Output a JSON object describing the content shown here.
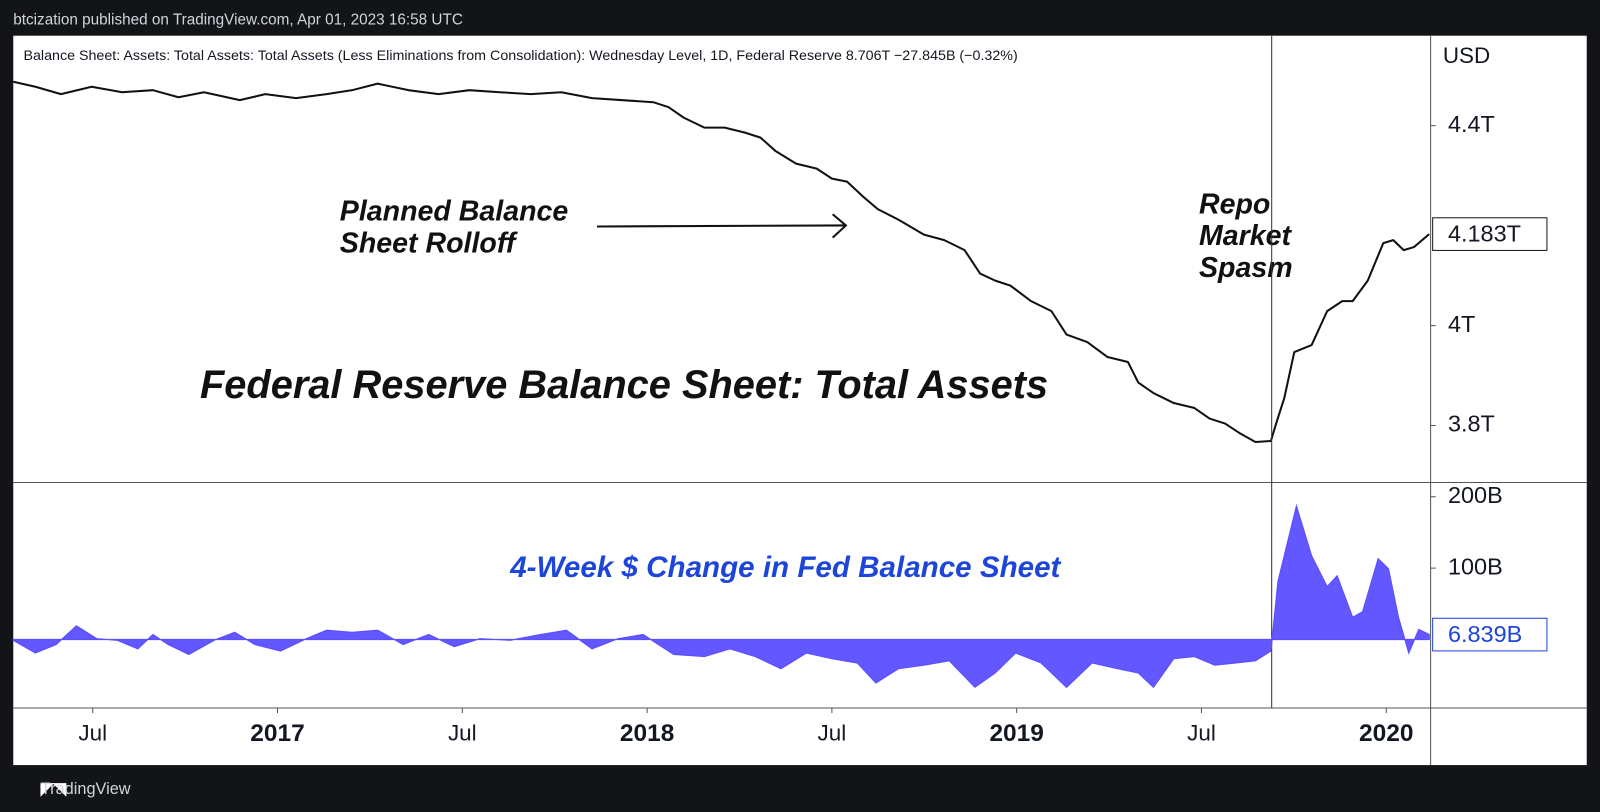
{
  "header": {
    "byline": "btcization published on TradingView.com, Apr 01, 2023 16:58 UTC"
  },
  "footer": {
    "brand": "TradingView"
  },
  "chart_data": [
    {
      "type": "line",
      "legend_text": "Balance Sheet: Assets: Total Assets: Total Assets (Less Eliminations from Consolidation): Wednesday Level, 1D, Federal Reserve  8.706T  −27.845B (−0.32%)",
      "title": "Federal Reserve Balance Sheet: Total Assets",
      "axis_unit": "USD",
      "annotations": [
        {
          "lines": [
            "Planned Balance",
            "Sheet Rolloff"
          ]
        },
        {
          "lines": [
            "Repo",
            "Market",
            "Spasm"
          ]
        }
      ],
      "color": "#111111",
      "event_x": 2019.69,
      "xlim": [
        2016.285,
        2020.12
      ],
      "ylim": [
        3.686,
        4.58
      ],
      "yticks": [
        {
          "value": 4.4,
          "label": "4.4T"
        },
        {
          "value": 4,
          "label": "4T"
        },
        {
          "value": 3.8,
          "label": "3.8T"
        }
      ],
      "last_value": {
        "value": 4.183,
        "label": "4.183T"
      },
      "x": [
        2016.285,
        2016.345,
        2016.414,
        2016.497,
        2016.58,
        2016.663,
        2016.732,
        2016.801,
        2016.898,
        2016.967,
        2017.05,
        2017.133,
        2017.202,
        2017.271,
        2017.354,
        2017.436,
        2017.519,
        2017.602,
        2017.685,
        2017.768,
        2017.851,
        2017.934,
        2018.017,
        2018.058,
        2018.099,
        2018.155,
        2018.21,
        2018.265,
        2018.307,
        2018.348,
        2018.403,
        2018.459,
        2018.5,
        2018.541,
        2018.583,
        2018.624,
        2018.68,
        2018.749,
        2018.804,
        2018.859,
        2018.901,
        2018.942,
        2018.983,
        2019.039,
        2019.094,
        2019.135,
        2019.191,
        2019.246,
        2019.301,
        2019.329,
        2019.37,
        2019.425,
        2019.481,
        2019.522,
        2019.564,
        2019.605,
        2019.646,
        2019.688,
        2019.702,
        2019.724,
        2019.751,
        2019.798,
        2019.84,
        2019.881,
        2019.909,
        2019.95,
        2019.992,
        2020.019,
        2020.047,
        2020.075,
        2020.116
      ],
      "values": [
        4.488,
        4.478,
        4.463,
        4.478,
        4.467,
        4.471,
        4.457,
        4.467,
        4.451,
        4.463,
        4.455,
        4.463,
        4.471,
        4.484,
        4.471,
        4.463,
        4.471,
        4.467,
        4.463,
        4.467,
        4.455,
        4.451,
        4.447,
        4.437,
        4.416,
        4.396,
        4.396,
        4.386,
        4.376,
        4.349,
        4.324,
        4.314,
        4.294,
        4.288,
        4.259,
        4.233,
        4.212,
        4.182,
        4.171,
        4.151,
        4.104,
        4.09,
        4.08,
        4.049,
        4.029,
        3.982,
        3.967,
        3.937,
        3.927,
        3.886,
        3.865,
        3.845,
        3.835,
        3.814,
        3.804,
        3.784,
        3.767,
        3.769,
        3.804,
        3.855,
        3.947,
        3.961,
        4.029,
        4.049,
        4.049,
        4.09,
        4.165,
        4.171,
        4.151,
        4.157,
        4.183
      ]
    },
    {
      "type": "area",
      "title": "4-Week $ Change in Fed Balance Sheet",
      "color": "#5b4fff",
      "xlim": [
        2016.285,
        2020.12
      ],
      "xticks": [
        {
          "value": 2016.5,
          "label": "Jul"
        },
        2017,
        {
          "value": 2017.5,
          "label": "Jul"
        },
        2018,
        {
          "value": 2018.5,
          "label": "Jul"
        },
        2019,
        {
          "value": 2019.5,
          "label": "Jul"
        },
        2020
      ],
      "ylim": [
        -96,
        220
      ],
      "yticks": [
        {
          "value": 200,
          "label": "200B"
        },
        {
          "value": 100,
          "label": "100B"
        }
      ],
      "last_value": {
        "value": 6.839,
        "label": "6.839B"
      },
      "x": [
        2016.285,
        2016.345,
        2016.401,
        2016.456,
        2016.511,
        2016.566,
        2016.622,
        2016.663,
        2016.704,
        2016.76,
        2016.829,
        2016.884,
        2016.939,
        2017.008,
        2017.077,
        2017.133,
        2017.202,
        2017.271,
        2017.34,
        2017.409,
        2017.478,
        2017.547,
        2017.63,
        2017.713,
        2017.782,
        2017.851,
        2017.92,
        2017.989,
        2018.072,
        2018.155,
        2018.224,
        2018.293,
        2018.362,
        2018.431,
        2018.5,
        2018.569,
        2018.619,
        2018.68,
        2018.749,
        2018.818,
        2018.887,
        2018.942,
        2018.997,
        2019.066,
        2019.135,
        2019.204,
        2019.273,
        2019.329,
        2019.37,
        2019.425,
        2019.481,
        2019.536,
        2019.591,
        2019.646,
        2019.688,
        2019.707,
        2019.757,
        2019.798,
        2019.84,
        2019.867,
        2019.909,
        2019.936,
        2019.978,
        2020.006,
        2020.033,
        2020.061,
        2020.088,
        2020.116
      ],
      "values": [
        -1,
        -19,
        -7,
        19,
        1,
        -1,
        -13,
        7,
        -7,
        -21,
        -1,
        10,
        -7,
        -16,
        1,
        13,
        10,
        13,
        -7,
        7,
        -10,
        1,
        -1,
        7,
        13,
        -13,
        1,
        7,
        -21,
        -24,
        -13,
        -24,
        -41,
        -19,
        -27,
        -33,
        -61,
        -41,
        -36,
        -30,
        -67,
        -47,
        -19,
        -33,
        -67,
        -33,
        -41,
        -47,
        -67,
        -27,
        -24,
        -36,
        -33,
        -30,
        -16,
        81,
        187,
        117,
        74,
        89,
        31,
        39,
        113,
        99,
        31,
        -19,
        14,
        7
      ]
    }
  ]
}
